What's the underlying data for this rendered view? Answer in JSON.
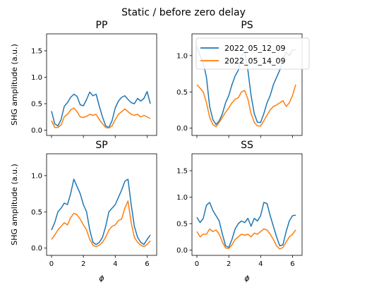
{
  "chart_data": {
    "type": "line",
    "suptitle": "Static / before zero delay",
    "legend": {
      "placement": "top-right of panel PS",
      "entries": [
        "2022_05_12_09",
        "2022_05_14_09"
      ]
    },
    "colors": {
      "series_0": "#1f77b4",
      "series_1": "#ff7f0e"
    },
    "panels": [
      {
        "title": "PP",
        "xlabel": "",
        "ylabel": "SHG amplitude (a.u.)",
        "xlim": [
          -0.31,
          6.6
        ],
        "ylim": [
          -0.1,
          1.82
        ],
        "xticks": [
          "0",
          "2",
          "4",
          "6"
        ],
        "show_xticklabels": false,
        "yticks": [
          "0.0",
          "0.5",
          "1.0",
          "1.5"
        ],
        "show_yticklabels": true,
        "series": [
          {
            "name": "2022_05_12_09",
            "x": [
              0,
              0.2,
              0.4,
              0.6,
              0.8,
              1.0,
              1.2,
              1.4,
              1.6,
              1.8,
              2.0,
              2.2,
              2.4,
              2.6,
              2.8,
              3.0,
              3.2,
              3.4,
              3.6,
              3.8,
              4.0,
              4.2,
              4.4,
              4.6,
              4.8,
              5.0,
              5.2,
              5.4,
              5.6,
              5.8,
              6.0,
              6.2
            ],
            "y": [
              0.36,
              0.12,
              0.08,
              0.2,
              0.45,
              0.52,
              0.62,
              0.68,
              0.64,
              0.48,
              0.46,
              0.58,
              0.72,
              0.65,
              0.68,
              0.45,
              0.25,
              0.08,
              0.05,
              0.18,
              0.42,
              0.55,
              0.62,
              0.65,
              0.58,
              0.52,
              0.5,
              0.6,
              0.55,
              0.6,
              0.73,
              0.5
            ]
          },
          {
            "name": "2022_05_14_09",
            "x": [
              0,
              0.2,
              0.4,
              0.6,
              0.8,
              1.0,
              1.2,
              1.4,
              1.6,
              1.8,
              2.0,
              2.2,
              2.4,
              2.6,
              2.8,
              3.0,
              3.2,
              3.4,
              3.6,
              3.8,
              4.0,
              4.2,
              4.4,
              4.6,
              4.8,
              5.0,
              5.2,
              5.4,
              5.6,
              5.8,
              6.0,
              6.2
            ],
            "y": [
              0.18,
              0.05,
              0.05,
              0.1,
              0.25,
              0.3,
              0.38,
              0.42,
              0.35,
              0.25,
              0.24,
              0.26,
              0.3,
              0.28,
              0.3,
              0.2,
              0.12,
              0.05,
              0.04,
              0.08,
              0.2,
              0.3,
              0.35,
              0.4,
              0.35,
              0.3,
              0.28,
              0.3,
              0.25,
              0.28,
              0.25,
              0.22
            ]
          }
        ]
      },
      {
        "title": "PS",
        "xlabel": "",
        "ylabel": "",
        "xlim": [
          -0.31,
          6.6
        ],
        "ylim": [
          -0.1,
          1.3
        ],
        "xticks": [
          "0",
          "2",
          "4",
          "6"
        ],
        "show_xticklabels": false,
        "yticks": [
          "0.0",
          "0.5",
          "1.0"
        ],
        "show_yticklabels": true,
        "series": [
          {
            "name": "2022_05_12_09",
            "x": [
              0,
              0.2,
              0.4,
              0.6,
              0.8,
              1.0,
              1.2,
              1.4,
              1.6,
              1.8,
              2.0,
              2.2,
              2.4,
              2.6,
              2.8,
              3.0,
              3.2,
              3.4,
              3.6,
              3.8,
              4.0,
              4.2,
              4.4,
              4.6,
              4.8,
              5.0,
              5.2,
              5.4,
              5.6,
              5.8,
              6.0,
              6.2
            ],
            "y": [
              1.12,
              1.0,
              0.9,
              0.7,
              0.3,
              0.12,
              0.05,
              0.1,
              0.2,
              0.35,
              0.45,
              0.6,
              0.72,
              0.8,
              1.0,
              1.05,
              0.8,
              0.45,
              0.2,
              0.08,
              0.08,
              0.2,
              0.35,
              0.45,
              0.6,
              0.7,
              0.8,
              0.95,
              1.05,
              1.0,
              1.08,
              1.08
            ]
          },
          {
            "name": "2022_05_14_09",
            "x": [
              0,
              0.2,
              0.4,
              0.6,
              0.8,
              1.0,
              1.2,
              1.4,
              1.6,
              1.8,
              2.0,
              2.2,
              2.4,
              2.6,
              2.8,
              3.0,
              3.2,
              3.4,
              3.6,
              3.8,
              4.0,
              4.2,
              4.4,
              4.6,
              4.8,
              5.0,
              5.2,
              5.4,
              5.6,
              5.8,
              6.0,
              6.2
            ],
            "y": [
              0.6,
              0.55,
              0.5,
              0.35,
              0.15,
              0.05,
              0.02,
              0.08,
              0.15,
              0.22,
              0.28,
              0.35,
              0.4,
              0.42,
              0.5,
              0.52,
              0.4,
              0.2,
              0.08,
              0.03,
              0.03,
              0.1,
              0.18,
              0.25,
              0.3,
              0.32,
              0.35,
              0.38,
              0.3,
              0.35,
              0.45,
              0.6
            ]
          }
        ]
      },
      {
        "title": "SP",
        "xlabel": "ϕ",
        "ylabel": "SHG amplitude (a.u.)",
        "xlim": [
          -0.31,
          6.6
        ],
        "ylim": [
          -0.1,
          1.3
        ],
        "xticks": [
          "0",
          "2",
          "4",
          "6"
        ],
        "show_xticklabels": true,
        "yticks": [
          "0.0",
          "0.5",
          "1.0"
        ],
        "show_yticklabels": true,
        "series": [
          {
            "name": "2022_05_12_09",
            "x": [
              0,
              0.2,
              0.4,
              0.6,
              0.8,
              1.0,
              1.2,
              1.4,
              1.6,
              1.8,
              2.0,
              2.2,
              2.4,
              2.6,
              2.8,
              3.0,
              3.2,
              3.4,
              3.6,
              3.8,
              4.0,
              4.2,
              4.4,
              4.6,
              4.8,
              5.0,
              5.2,
              5.4,
              5.6,
              5.8,
              6.0,
              6.2
            ],
            "y": [
              0.25,
              0.35,
              0.5,
              0.55,
              0.62,
              0.6,
              0.75,
              0.95,
              0.85,
              0.75,
              0.6,
              0.5,
              0.25,
              0.08,
              0.05,
              0.08,
              0.15,
              0.3,
              0.5,
              0.55,
              0.6,
              0.7,
              0.8,
              0.92,
              0.95,
              0.6,
              0.3,
              0.15,
              0.08,
              0.05,
              0.12,
              0.18
            ]
          },
          {
            "name": "2022_05_14_09",
            "x": [
              0,
              0.2,
              0.4,
              0.6,
              0.8,
              1.0,
              1.2,
              1.4,
              1.6,
              1.8,
              2.0,
              2.2,
              2.4,
              2.6,
              2.8,
              3.0,
              3.2,
              3.4,
              3.6,
              3.8,
              4.0,
              4.2,
              4.4,
              4.6,
              4.8,
              5.0,
              5.2,
              5.4,
              5.6,
              5.8,
              6.0,
              6.2
            ],
            "y": [
              0.12,
              0.18,
              0.25,
              0.3,
              0.35,
              0.32,
              0.42,
              0.48,
              0.46,
              0.4,
              0.32,
              0.25,
              0.12,
              0.04,
              0.02,
              0.04,
              0.08,
              0.15,
              0.25,
              0.3,
              0.32,
              0.38,
              0.4,
              0.55,
              0.65,
              0.35,
              0.15,
              0.08,
              0.04,
              0.02,
              0.05,
              0.1
            ]
          }
        ]
      },
      {
        "title": "SS",
        "xlabel": "ϕ",
        "ylabel": "",
        "xlim": [
          -0.31,
          6.6
        ],
        "ylim": [
          -0.1,
          1.82
        ],
        "xticks": [
          "0",
          "2",
          "4",
          "6"
        ],
        "show_xticklabels": true,
        "yticks": [
          "0.0",
          "0.5",
          "1.0",
          "1.5"
        ],
        "show_yticklabels": true,
        "series": [
          {
            "name": "2022_05_12_09",
            "x": [
              0,
              0.2,
              0.4,
              0.6,
              0.8,
              1.0,
              1.2,
              1.4,
              1.6,
              1.8,
              2.0,
              2.2,
              2.4,
              2.6,
              2.8,
              3.0,
              3.2,
              3.4,
              3.6,
              3.8,
              4.0,
              4.2,
              4.4,
              4.6,
              4.8,
              5.0,
              5.2,
              5.4,
              5.6,
              5.8,
              6.0,
              6.2
            ],
            "y": [
              0.62,
              0.52,
              0.6,
              0.85,
              0.9,
              0.75,
              0.65,
              0.55,
              0.3,
              0.08,
              0.05,
              0.2,
              0.4,
              0.5,
              0.55,
              0.52,
              0.6,
              0.45,
              0.6,
              0.55,
              0.65,
              0.9,
              0.88,
              0.65,
              0.45,
              0.25,
              0.08,
              0.1,
              0.35,
              0.55,
              0.65,
              0.66
            ]
          },
          {
            "name": "2022_05_14_09",
            "x": [
              0,
              0.2,
              0.4,
              0.6,
              0.8,
              1.0,
              1.2,
              1.4,
              1.6,
              1.8,
              2.0,
              2.2,
              2.4,
              2.6,
              2.8,
              3.0,
              3.2,
              3.4,
              3.6,
              3.8,
              4.0,
              4.2,
              4.4,
              4.6,
              4.8,
              5.0,
              5.2,
              5.4,
              5.6,
              5.8,
              6.0,
              6.2
            ],
            "y": [
              0.35,
              0.25,
              0.3,
              0.3,
              0.4,
              0.35,
              0.38,
              0.3,
              0.15,
              0.04,
              0.03,
              0.1,
              0.2,
              0.25,
              0.3,
              0.28,
              0.3,
              0.25,
              0.32,
              0.3,
              0.35,
              0.4,
              0.38,
              0.3,
              0.2,
              0.08,
              0.02,
              0.05,
              0.15,
              0.25,
              0.3,
              0.38
            ]
          }
        ]
      }
    ]
  }
}
